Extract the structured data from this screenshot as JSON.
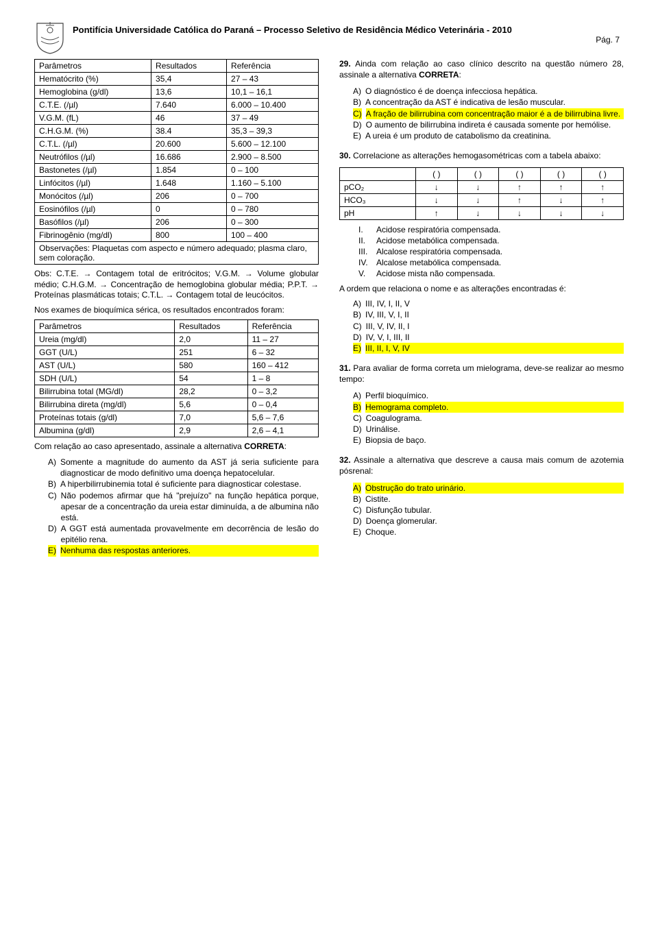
{
  "header": {
    "title": "Pontifícia Universidade Católica do Paraná – Processo Seletivo de Residência Médico Veterinária - 2010",
    "page_label": "Pág. 7"
  },
  "table1": {
    "headers": [
      "Parâmetros",
      "Resultados",
      "Referência"
    ],
    "rows": [
      [
        "Hematócrito (%)",
        "35,4",
        "27 – 43"
      ],
      [
        "Hemoglobina (g/dl)",
        "13,6",
        "10,1 – 16,1"
      ],
      [
        "C.T.E. (/µl)",
        "7.640",
        "6.000 – 10.400"
      ],
      [
        "V.G.M. (fL)",
        "46",
        "37 – 49"
      ],
      [
        "C.H.G.M. (%)",
        "38.4",
        "35,3 – 39,3"
      ],
      [
        "C.T.L. (/µl)",
        "20.600",
        "5.600 – 12.100"
      ],
      [
        "Neutrófilos (/µl)",
        "16.686",
        "2.900 – 8.500"
      ],
      [
        "Bastonetes (/µl)",
        "1.854",
        "0 – 100"
      ],
      [
        "Linfócitos (/µl)",
        "1.648",
        "1.160 – 5.100"
      ],
      [
        "Monócitos (/µl)",
        "206",
        "0 – 700"
      ],
      [
        "Eosinófilos (/µl)",
        "0",
        "0 – 780"
      ],
      [
        "Basófilos (/µl)",
        "206",
        "0 – 300"
      ],
      [
        "Fibrinogênio (mg/dl)",
        "800",
        "100 – 400"
      ]
    ],
    "footer": "Observações: Plaquetas com aspecto e número adequado; plasma claro, sem coloração."
  },
  "obs_text": "Obs: C.T.E. → Contagem total de eritrócitos; V.G.M. → Volume globular médio; C.H.G.M. → Concentração de hemoglobina globular média; P.P.T. → Proteínas plasmáticas totais; C.T.L. → Contagem total de leucócitos.",
  "intro2": "Nos exames de bioquímica sérica, os resultados encontrados foram:",
  "table2": {
    "headers": [
      "Parâmetros",
      "Resultados",
      "Referência"
    ],
    "rows": [
      [
        "Ureia (mg/dl)",
        "2,0",
        "11 – 27"
      ],
      [
        "GGT (U/L)",
        "251",
        "6 – 32"
      ],
      [
        "AST (U/L)",
        "580",
        "160 – 412"
      ],
      [
        "SDH (U/L)",
        "54",
        "1 – 8"
      ],
      [
        "Bilirrubina total (MG/dl)",
        "28,2",
        "0 – 3,2"
      ],
      [
        "Bilirrubina direta (mg/dl)",
        "5,6",
        "0 – 0,4"
      ],
      [
        "Proteínas totais (g/dl)",
        "7,0",
        "5,6 – 7,6"
      ],
      [
        "Albumina (g/dl)",
        "2,9",
        "2,6 – 4,1"
      ]
    ]
  },
  "q28_tail": {
    "prompt_line1": "Com relação ao caso apresentado, assinale a alternativa",
    "prompt_correta": "CORRETA",
    "alts": [
      {
        "l": "A)",
        "t": "Somente a magnitude do aumento da AST já seria suficiente para diagnosticar de modo definitivo uma doença hepatocelular.",
        "hl": false
      },
      {
        "l": "B)",
        "t": "A hiperbilirrubinemia total é suficiente para diagnosticar colestase.",
        "hl": false
      },
      {
        "l": "C)",
        "t": "Não podemos afirmar que há \"prejuízo\" na função hepática porque, apesar de a concentração da ureia estar diminuída, a de albumina não está.",
        "hl": false
      },
      {
        "l": "D)",
        "t": "A GGT está aumentada provavelmente em decorrência de lesão do epitélio rena.",
        "hl": false
      },
      {
        "l": "E)",
        "t": "Nenhuma das respostas anteriores.",
        "hl": true
      }
    ]
  },
  "q29": {
    "num": "29.",
    "text_a": "Ainda com relação ao caso clínico descrito na questão número 28, assinale a alternativa ",
    "text_b": "CORRETA",
    "text_c": ":",
    "alts": [
      {
        "l": "A)",
        "t": "O diagnóstico é de doença infecciosa hepática.",
        "hl": false
      },
      {
        "l": "B)",
        "t": "A concentração da AST é indicativa de lesão muscular.",
        "hl": false
      },
      {
        "l": "C)",
        "t": "A fração de bilirrubina com concentração maior é a de bilirrubina livre.",
        "hl": true
      },
      {
        "l": "D)",
        "t": "O aumento de bilirrubina indireta é causada somente por hemólise.",
        "hl": false
      },
      {
        "l": "E)",
        "t": "A ureia é um produto de catabolismo da creatinina.",
        "hl": false
      }
    ]
  },
  "q30": {
    "num": "30.",
    "text": "Correlacione as alterações hemogasométricas com a tabela abaixo:",
    "table": {
      "head": [
        "",
        "(   )",
        "(   )",
        "(   )",
        "(   )",
        "(   )"
      ],
      "rows": [
        [
          "pCO₂",
          "↓",
          "↓",
          "↑",
          "↑",
          "↑"
        ],
        [
          "HCO₃",
          "↓",
          "↓",
          "↑",
          "↓",
          "↑"
        ],
        [
          "pH",
          "↑",
          "↓",
          "↓",
          "↓",
          "↓"
        ]
      ]
    },
    "list": [
      {
        "n": "I.",
        "t": "Acidose respiratória compensada."
      },
      {
        "n": "II.",
        "t": "Acidose metabólica compensada."
      },
      {
        "n": "III.",
        "t": "Alcalose respiratória compensada."
      },
      {
        "n": "IV.",
        "t": "Alcalose metabólica compensada."
      },
      {
        "n": "V.",
        "t": "Acidose mista não compensada."
      }
    ],
    "order_text": "A ordem que relaciona o nome e as alterações encontradas é:",
    "alts": [
      {
        "l": "A)",
        "t": "III, IV, I, II, V",
        "hl": false
      },
      {
        "l": "B)",
        "t": "IV, III, V, I, II",
        "hl": false
      },
      {
        "l": "C)",
        "t": "III, V, IV, II, I",
        "hl": false
      },
      {
        "l": "D)",
        "t": "IV, V, I, III, II",
        "hl": false
      },
      {
        "l": "E)",
        "t": "III, II, I, V, IV",
        "hl": true
      }
    ]
  },
  "q31": {
    "num": "31.",
    "text": "Para avaliar de forma correta um mielograma, deve-se realizar ao mesmo tempo:",
    "alts": [
      {
        "l": "A)",
        "t": "Perfil bioquímico.",
        "hl": false
      },
      {
        "l": "B)",
        "t": "Hemograma completo.",
        "hl": true
      },
      {
        "l": "C)",
        "t": "Coagulograma.",
        "hl": false
      },
      {
        "l": "D)",
        "t": "Urinálise.",
        "hl": false
      },
      {
        "l": "E)",
        "t": "Biopsia de baço.",
        "hl": false
      }
    ]
  },
  "q32": {
    "num": "32.",
    "text": "Assinale a alternativa que descreve a causa mais comum de azotemia pósrenal:",
    "alts": [
      {
        "l": "A)",
        "t": "Obstrução do trato urinário.",
        "hl": true
      },
      {
        "l": "B)",
        "t": "Cistite.",
        "hl": false
      },
      {
        "l": "C)",
        "t": "Disfunção tubular.",
        "hl": false
      },
      {
        "l": "D)",
        "t": "Doença glomerular.",
        "hl": false
      },
      {
        "l": "E)",
        "t": "Choque.",
        "hl": false
      }
    ]
  }
}
